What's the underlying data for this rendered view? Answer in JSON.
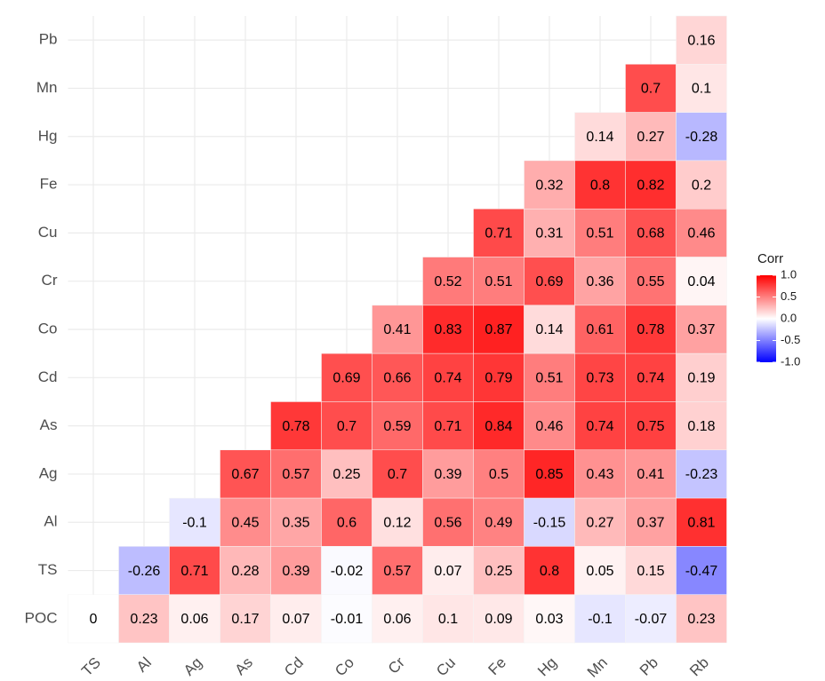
{
  "chart_data": {
    "type": "heatmap",
    "categories": [
      "TS",
      "Al",
      "Ag",
      "As",
      "Cd",
      "Co",
      "Cr",
      "Cu",
      "Fe",
      "Hg",
      "Mn",
      "Pb",
      "Rb"
    ],
    "rows": [
      "Pb",
      "Mn",
      "Hg",
      "Fe",
      "Cu",
      "Cr",
      "Co",
      "Cd",
      "As",
      "Ag",
      "Al",
      "TS",
      "POC"
    ],
    "values": [
      [
        null,
        null,
        null,
        null,
        null,
        null,
        null,
        null,
        null,
        null,
        null,
        null,
        0.16
      ],
      [
        null,
        null,
        null,
        null,
        null,
        null,
        null,
        null,
        null,
        null,
        null,
        0.7,
        0.1
      ],
      [
        null,
        null,
        null,
        null,
        null,
        null,
        null,
        null,
        null,
        null,
        0.14,
        0.27,
        -0.28
      ],
      [
        null,
        null,
        null,
        null,
        null,
        null,
        null,
        null,
        null,
        0.32,
        0.8,
        0.82,
        0.2
      ],
      [
        null,
        null,
        null,
        null,
        null,
        null,
        null,
        null,
        0.71,
        0.31,
        0.51,
        0.68,
        0.46
      ],
      [
        null,
        null,
        null,
        null,
        null,
        null,
        null,
        0.52,
        0.51,
        0.69,
        0.36,
        0.55,
        0.04
      ],
      [
        null,
        null,
        null,
        null,
        null,
        null,
        0.41,
        0.83,
        0.87,
        0.14,
        0.61,
        0.78,
        0.37
      ],
      [
        null,
        null,
        null,
        null,
        null,
        0.69,
        0.66,
        0.74,
        0.79,
        0.51,
        0.73,
        0.74,
        0.19
      ],
      [
        null,
        null,
        null,
        null,
        0.78,
        0.7,
        0.59,
        0.71,
        0.84,
        0.46,
        0.74,
        0.75,
        0.18
      ],
      [
        null,
        null,
        null,
        0.67,
        0.57,
        0.25,
        0.7,
        0.39,
        0.5,
        0.85,
        0.43,
        0.41,
        -0.23
      ],
      [
        null,
        null,
        -0.1,
        0.45,
        0.35,
        0.6,
        0.12,
        0.56,
        0.49,
        -0.15,
        0.27,
        0.37,
        0.81
      ],
      [
        null,
        -0.26,
        0.71,
        0.28,
        0.39,
        -0.02,
        0.57,
        0.07,
        0.25,
        0.8,
        0.05,
        0.15,
        -0.47
      ],
      [
        0,
        0.23,
        0.06,
        0.17,
        0.07,
        -0.01,
        0.06,
        0.1,
        0.09,
        0.03,
        -0.1,
        -0.07,
        0.23
      ]
    ],
    "legend_title": "Corr",
    "colorbar_lim": [
      -1,
      1
    ],
    "colorbar_ticks": [
      {
        "value": 1,
        "label": "1.0"
      },
      {
        "value": 0.5,
        "label": "0.5"
      },
      {
        "value": 0,
        "label": "0.0"
      },
      {
        "value": -0.5,
        "label": "-0.5"
      },
      {
        "value": -1,
        "label": "-1.0"
      }
    ],
    "colors": {
      "low": "#0000ff",
      "mid": "#ffffff",
      "high": "#ff0000"
    },
    "grid": true
  }
}
